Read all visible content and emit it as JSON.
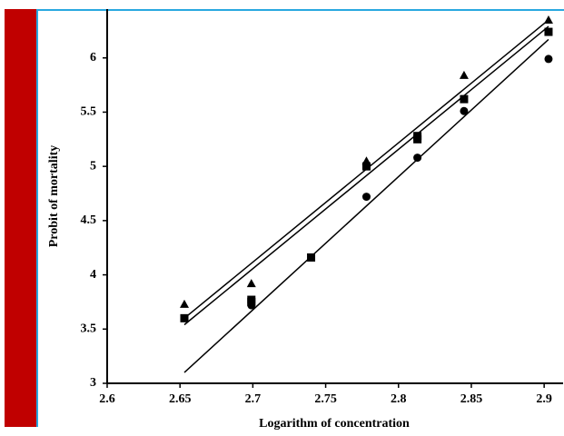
{
  "chart_data": {
    "type": "scatter",
    "x_label": "Logarithm of concentration",
    "y_label": "Probit of mortality",
    "xlim": [
      2.6,
      2.913
    ],
    "ylim": [
      3,
      6.45
    ],
    "xticks": [
      2.6,
      2.65,
      2.7,
      2.75,
      2.8,
      2.85,
      2.9
    ],
    "yticks": [
      3,
      3.5,
      4,
      4.5,
      5,
      5.5,
      6
    ],
    "series": [
      {
        "marker": "triangle",
        "color": "#000000",
        "x": [
          2.653,
          2.699,
          2.778,
          2.845,
          2.903
        ],
        "values": [
          3.73,
          3.92,
          5.05,
          5.84,
          6.35
        ]
      },
      {
        "marker": "square",
        "color": "#000000",
        "x": [
          2.653,
          2.699,
          2.699,
          2.74,
          2.778,
          2.813,
          2.813,
          2.845,
          2.903
        ],
        "values": [
          3.6,
          3.77,
          3.75,
          4.16,
          5.0,
          5.28,
          5.25,
          5.62,
          6.24
        ]
      },
      {
        "marker": "circle",
        "color": "#000000",
        "x": [
          2.699,
          2.778,
          2.813,
          2.845,
          2.903
        ],
        "values": [
          3.72,
          4.72,
          5.08,
          5.51,
          5.99
        ]
      }
    ],
    "fit_lines": [
      {
        "color": "#000000",
        "x": [
          2.653,
          2.903
        ],
        "values": [
          3.6,
          6.35
        ]
      },
      {
        "color": "#000000",
        "x": [
          2.653,
          2.903
        ],
        "values": [
          3.54,
          6.29
        ]
      },
      {
        "color": "#000000",
        "x": [
          2.653,
          2.903
        ],
        "values": [
          3.1,
          6.17
        ]
      }
    ]
  }
}
